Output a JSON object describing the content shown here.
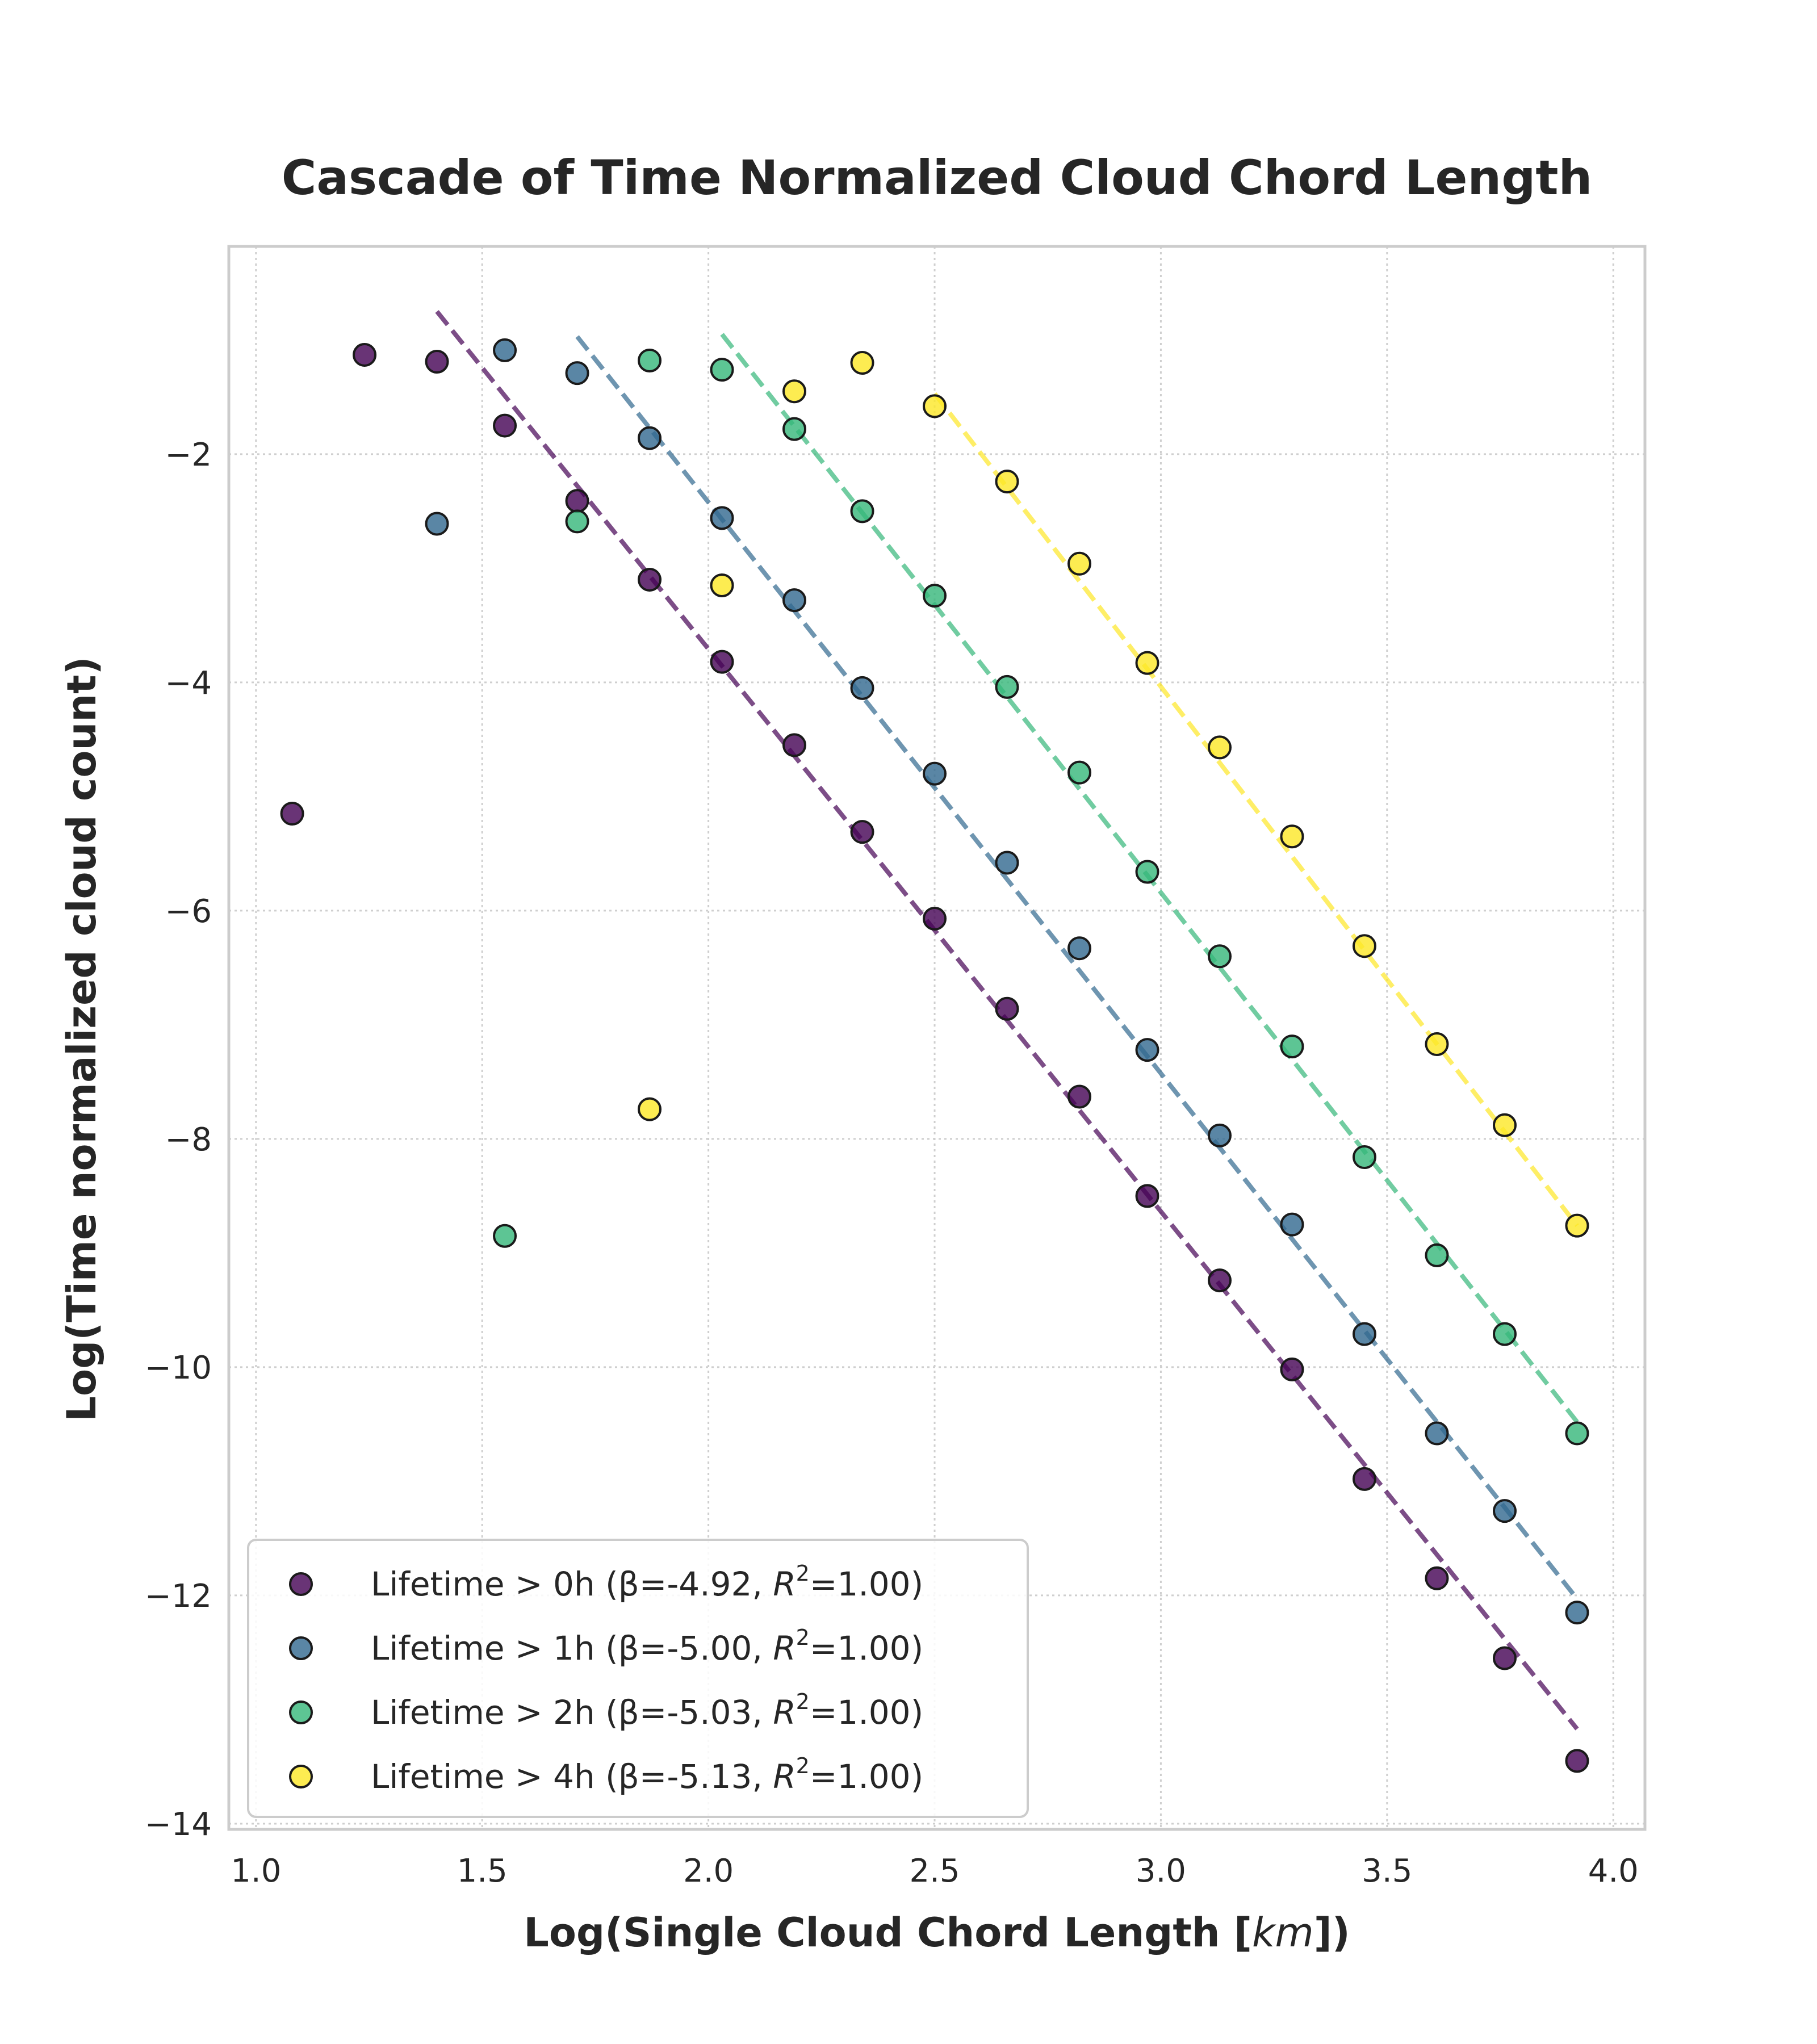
{
  "chart_data": {
    "type": "scatter",
    "title": "Cascade of Time Normalized Cloud Chord Length",
    "xlabel_prefix": "Log(Single Cloud Chord Length [",
    "xlabel_unit": "km",
    "xlabel_suffix": "])",
    "ylabel": "Log(Time normalized cloud count)",
    "xlim": [
      0.94,
      4.07
    ],
    "ylim": [
      -14.05,
      -0.18
    ],
    "x_ticks": [
      "1.0",
      "1.5",
      "2.0",
      "2.5",
      "3.0",
      "3.5",
      "4.0"
    ],
    "x_tick_values": [
      1.0,
      1.5,
      2.0,
      2.5,
      3.0,
      3.5,
      4.0
    ],
    "y_ticks": [
      "−2",
      "−4",
      "−6",
      "−8",
      "−10",
      "−12",
      "−14"
    ],
    "y_tick_values": [
      -2,
      -4,
      -6,
      -8,
      -10,
      -12,
      -14
    ],
    "grid": true,
    "legend_position": "lower-left",
    "series": [
      {
        "name": "Lifetime > 0h (β=-4.92, R²=1.00)",
        "legend_prefix": "Lifetime > 0h (β=-4.92, ",
        "legend_suffix": "=1.00)",
        "color": "#440154",
        "x": [
          1.08,
          1.24,
          1.4,
          1.55,
          1.71,
          1.87,
          2.03,
          2.19,
          2.34,
          2.5,
          2.66,
          2.82,
          2.97,
          3.13,
          3.29,
          3.45,
          3.61,
          3.76,
          3.92
        ],
        "y": [
          -5.15,
          -1.13,
          -1.19,
          -1.75,
          -2.41,
          -3.1,
          -3.82,
          -4.55,
          -5.31,
          -6.07,
          -6.86,
          -7.63,
          -8.5,
          -9.24,
          -10.02,
          -10.98,
          -11.85,
          -12.55,
          -13.45
        ],
        "fit": {
          "x": [
            1.4,
            3.92
          ],
          "y": [
            -0.75,
            -13.17
          ]
        }
      },
      {
        "name": "Lifetime > 1h (β=-5.00, R²=1.00)",
        "legend_prefix": "Lifetime > 1h (β=-5.00, ",
        "legend_suffix": "=1.00)",
        "color": "#31688e",
        "x": [
          1.4,
          1.55,
          1.71,
          1.87,
          2.03,
          2.19,
          2.34,
          2.5,
          2.66,
          2.82,
          2.97,
          3.13,
          3.29,
          3.45,
          3.61,
          3.76,
          3.92
        ],
        "y": [
          -2.61,
          -1.09,
          -1.29,
          -1.86,
          -2.56,
          -3.28,
          -4.05,
          -4.8,
          -5.58,
          -6.33,
          -7.22,
          -7.97,
          -8.75,
          -9.71,
          -10.58,
          -11.26,
          -12.15
        ],
        "fit": {
          "x": [
            1.71,
            3.92
          ],
          "y": [
            -0.97,
            -12.03
          ]
        }
      },
      {
        "name": "Lifetime > 2h (β=-5.03, R²=1.00)",
        "legend_prefix": "Lifetime > 2h (β=-5.03, ",
        "legend_suffix": "=1.00)",
        "color": "#35b779",
        "x": [
          1.55,
          1.71,
          1.87,
          2.03,
          2.19,
          2.34,
          2.5,
          2.66,
          2.82,
          2.97,
          3.13,
          3.29,
          3.45,
          3.61,
          3.76,
          3.92
        ],
        "y": [
          -8.85,
          -2.59,
          -1.18,
          -1.26,
          -1.78,
          -2.5,
          -3.24,
          -4.04,
          -4.79,
          -5.66,
          -6.4,
          -7.19,
          -8.16,
          -9.02,
          -9.71,
          -10.58
        ],
        "fit": {
          "x": [
            2.03,
            3.92
          ],
          "y": [
            -0.95,
            -10.48
          ]
        }
      },
      {
        "name": "Lifetime > 4h (β=-5.13, R²=1.00)",
        "legend_prefix": "Lifetime > 4h (β=-5.13, ",
        "legend_suffix": "=1.00)",
        "color": "#fde725",
        "x": [
          1.87,
          2.03,
          2.19,
          2.34,
          2.5,
          2.66,
          2.82,
          2.97,
          3.13,
          3.29,
          3.45,
          3.61,
          3.76,
          3.92
        ],
        "y": [
          -7.74,
          -3.15,
          -1.45,
          -1.2,
          -1.58,
          -2.24,
          -2.96,
          -3.83,
          -4.57,
          -5.35,
          -6.31,
          -7.17,
          -7.88,
          -8.76
        ],
        "fit": {
          "x": [
            2.5,
            3.92
          ],
          "y": [
            -1.47,
            -8.76
          ]
        }
      }
    ]
  }
}
